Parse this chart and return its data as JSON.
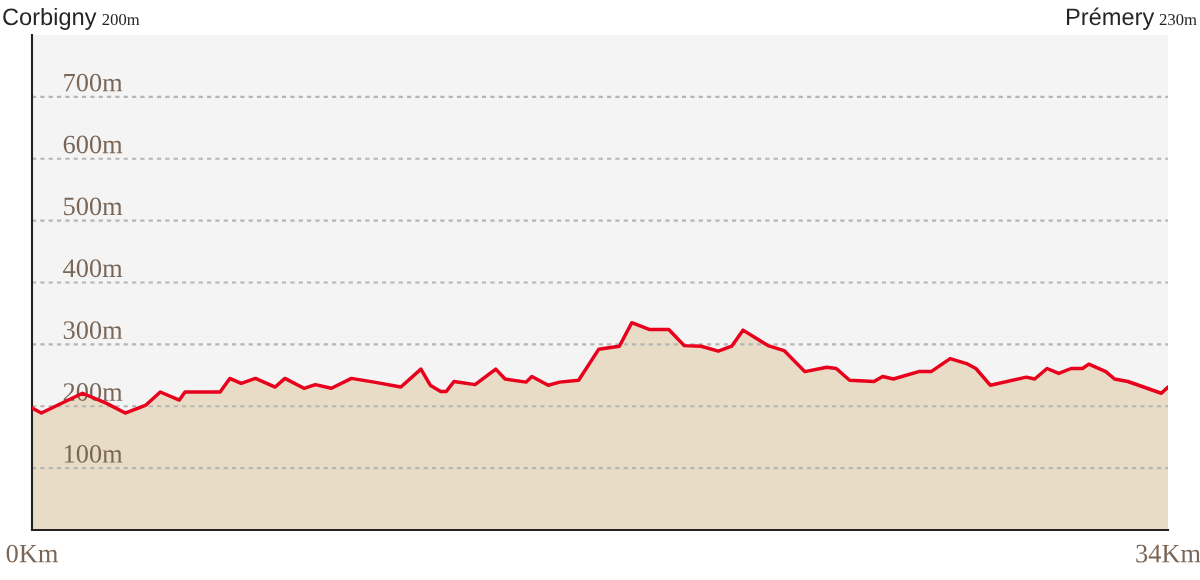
{
  "chart_data": {
    "type": "area",
    "annotations": [
      "Corbigny",
      "200m",
      "Prémery",
      "230m"
    ],
    "x": [
      0,
      0.28,
      1.51,
      2.22,
      2.79,
      3.41,
      3.84,
      4.41,
      4.58,
      5.63,
      5.92,
      6.26,
      6.69,
      7.28,
      7.57,
      8.14,
      8.48,
      8.96,
      9.56,
      10.24,
      11.04,
      11.64,
      11.92,
      12.23,
      12.4,
      12.63,
      13.26,
      13.88,
      14.16,
      14.79,
      14.96,
      15.45,
      15.79,
      16.36,
      16.96,
      17.58,
      17.95,
      18.49,
      19.06,
      19.52,
      20.03,
      20.54,
      20.94,
      21.28,
      22.03,
      22.51,
      23.13,
      23.79,
      24.07,
      24.47,
      25.2,
      25.46,
      25.78,
      26.54,
      26.91,
      27.48,
      27.97,
      28.25,
      28.68,
      29.76,
      30.01,
      30.38,
      30.73,
      31.1,
      31.44,
      31.63,
      32.14,
      32.4,
      32.8,
      33.8,
      34
    ],
    "series": [
      {
        "color": "#e8001c",
        "values": [
          197,
          189,
          221,
          205,
          189,
          202,
          223,
          210,
          223,
          223,
          245,
          237,
          245,
          231,
          245,
          229,
          235,
          229,
          245,
          239,
          231,
          260,
          234,
          224,
          224,
          240,
          235,
          260,
          244,
          239,
          248,
          234,
          239,
          242,
          292,
          297,
          335,
          324,
          324,
          298,
          297,
          289,
          297,
          323,
          298,
          290,
          256,
          263,
          261,
          242,
          240,
          248,
          244,
          256,
          256,
          277,
          269,
          261,
          234,
          247,
          244,
          261,
          253,
          261,
          261,
          268,
          256,
          244,
          240,
          221,
          231
        ]
      }
    ],
    "xlim": [
      0,
      34
    ],
    "ylim": [
      0,
      800
    ],
    "xticks": [
      {
        "value": 0,
        "label": "0Km"
      },
      {
        "value": 34,
        "label": "34Km"
      }
    ],
    "yticks": [
      {
        "value": 100,
        "label": "100m"
      },
      {
        "value": 200,
        "label": "200m"
      },
      {
        "value": 300,
        "label": "300m"
      },
      {
        "value": 400,
        "label": "400m"
      },
      {
        "value": 500,
        "label": "500m"
      },
      {
        "value": 600,
        "label": "600m"
      },
      {
        "value": 700,
        "label": "700m"
      }
    ],
    "grid": "y",
    "legend": false
  }
}
